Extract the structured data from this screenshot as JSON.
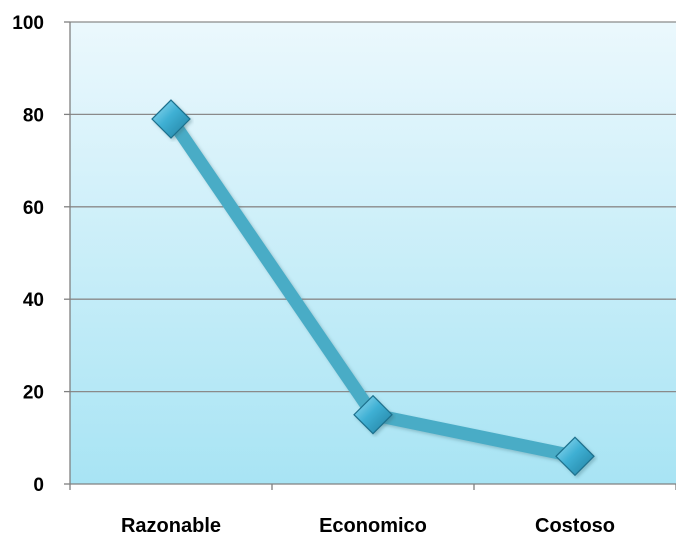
{
  "chart_data": {
    "type": "line",
    "categories": [
      "Razonable",
      "Economico",
      "Costoso"
    ],
    "values": [
      79,
      15,
      6
    ],
    "ylim": [
      0,
      100
    ],
    "yticks": [
      0,
      20,
      40,
      60,
      80,
      100
    ],
    "grid": true,
    "legend": "none",
    "colors": {
      "line": "#4aacc6",
      "marker": "#3fa9c9",
      "plot_bg_top": "#ebf8fd",
      "plot_bg_bottom": "#a8e4f4",
      "grid": "#8a8a8a",
      "axis": "#808080"
    }
  }
}
